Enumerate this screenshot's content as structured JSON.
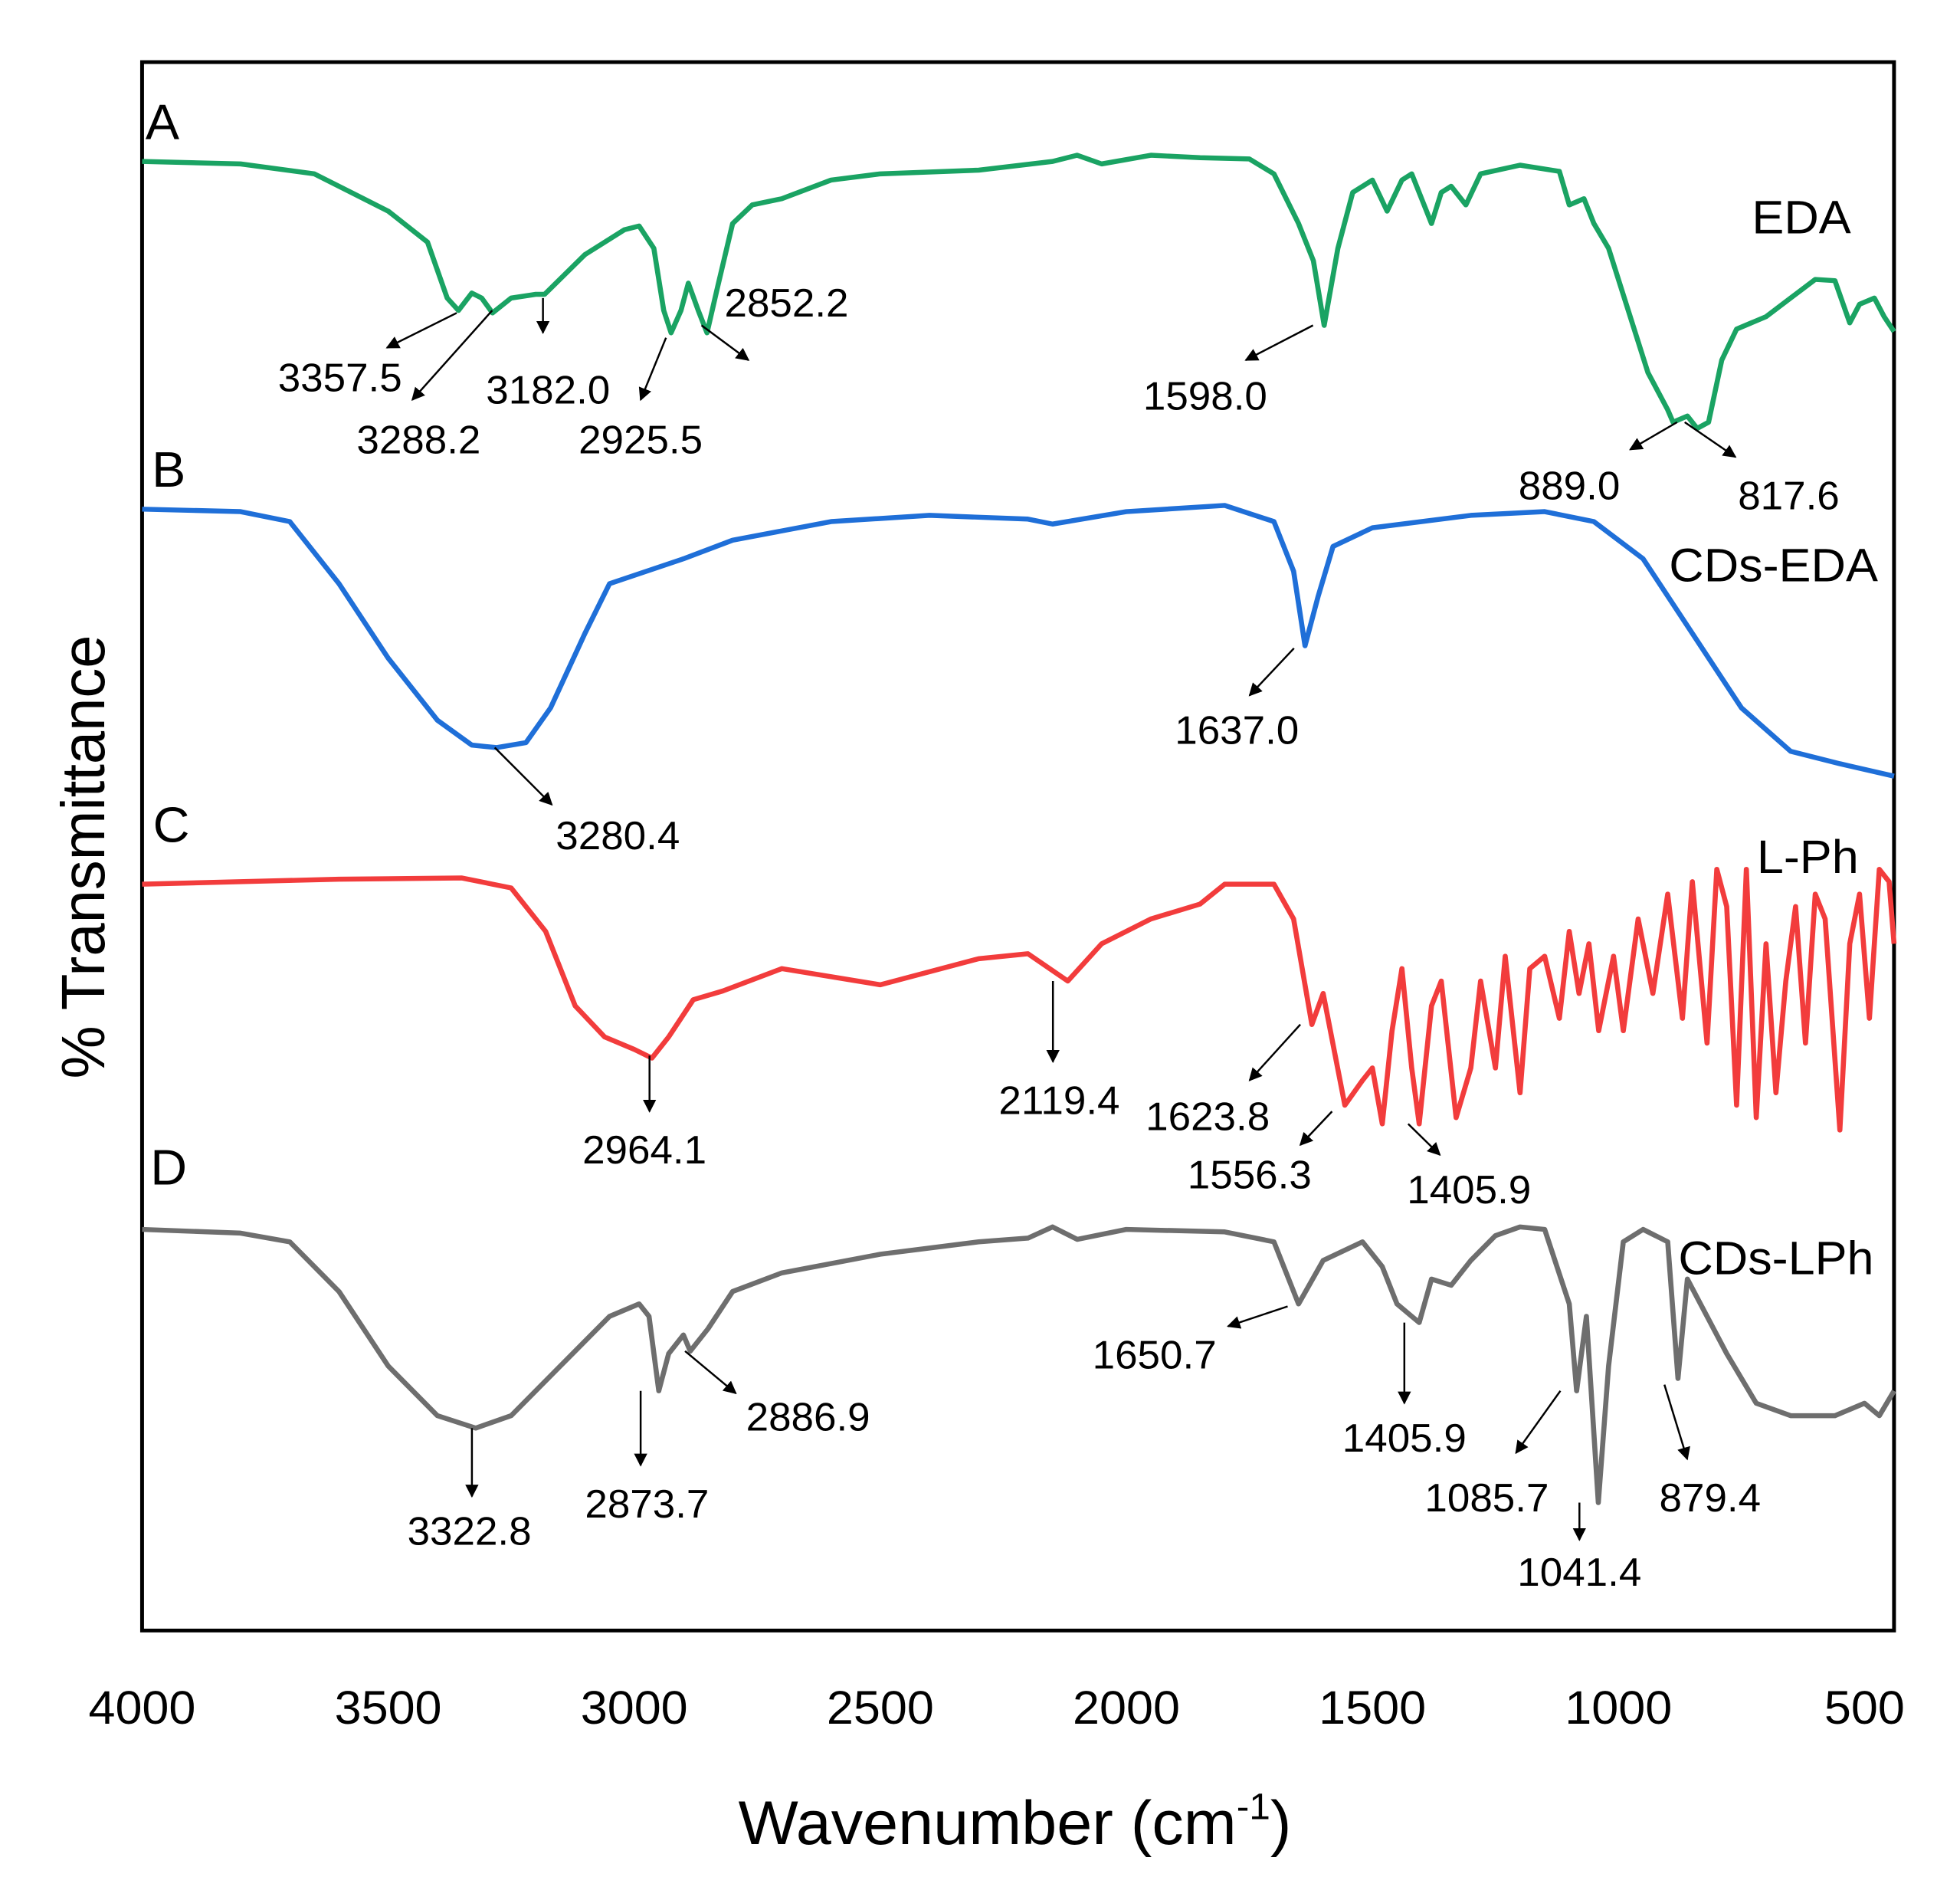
{
  "chart_data": {
    "type": "line",
    "x_label": [
      "Wavenumber (cm",
      "-1",
      ")"
    ],
    "y_label": "% Transmittance",
    "xlim": [
      4000,
      440
    ],
    "ylim": [
      0,
      126.3
    ],
    "xticks": [
      4000,
      3500,
      3000,
      2500,
      2000,
      1500,
      1000,
      500
    ],
    "grid": false,
    "panel_labels": [
      "A",
      "B",
      "C",
      "D"
    ],
    "series": [
      {
        "name": "EDA",
        "color": "#1aa363",
        "x": [
          4000,
          3800,
          3650,
          3500,
          3420,
          3380,
          3357,
          3330,
          3310,
          3288,
          3250,
          3200,
          3182,
          3100,
          3020,
          2990,
          2960,
          2940,
          2925,
          2905,
          2890,
          2870,
          2852,
          2830,
          2800,
          2760,
          2700,
          2600,
          2500,
          2300,
          2150,
          2100,
          2050,
          1950,
          1850,
          1750,
          1700,
          1650,
          1620,
          1598,
          1570,
          1540,
          1500,
          1470,
          1440,
          1420,
          1400,
          1380,
          1360,
          1340,
          1310,
          1280,
          1200,
          1120,
          1100,
          1070,
          1050,
          1020,
          980,
          940,
          900,
          889,
          860,
          840,
          817,
          790,
          760,
          700,
          650,
          600,
          560,
          530,
          510,
          480,
          460,
          440
        ],
        "values": [
          118.3,
          118.1,
          117.3,
          114.3,
          111.8,
          107.3,
          106.3,
          107.7,
          107.3,
          106.1,
          107.3,
          107.6,
          107.6,
          110.8,
          112.8,
          113.1,
          111.3,
          106.3,
          104.5,
          106.3,
          108.5,
          106.3,
          104.5,
          108.3,
          113.3,
          114.8,
          115.3,
          116.8,
          117.3,
          117.6,
          118.3,
          118.8,
          118.1,
          118.8,
          118.6,
          118.5,
          117.3,
          113.3,
          110.3,
          105.1,
          111.3,
          115.8,
          116.8,
          114.3,
          116.8,
          117.3,
          115.3,
          113.3,
          115.8,
          116.3,
          114.8,
          117.3,
          118.0,
          117.5,
          114.8,
          115.3,
          113.3,
          111.3,
          106.3,
          101.3,
          98.3,
          97.3,
          97.8,
          96.8,
          97.3,
          102.3,
          104.8,
          105.8,
          107.3,
          108.8,
          108.7,
          105.3,
          106.8,
          107.3,
          105.8,
          104.6
        ]
      },
      {
        "name": "CDs-EDA",
        "color": "#1f6fd8",
        "x": [
          4000,
          3800,
          3700,
          3600,
          3500,
          3400,
          3330,
          3280,
          3220,
          3170,
          3100,
          3050,
          2900,
          2800,
          2600,
          2400,
          2200,
          2150,
          2000,
          1800,
          1700,
          1660,
          1637,
          1610,
          1580,
          1500,
          1300,
          1150,
          1050,
          950,
          850,
          750,
          650,
          550,
          440
        ],
        "values": [
          90.3,
          90.1,
          89.3,
          84.3,
          78.3,
          73.3,
          71.3,
          71.1,
          71.5,
          74.3,
          80.3,
          84.3,
          86.3,
          87.8,
          89.3,
          89.8,
          89.5,
          89.1,
          90.1,
          90.6,
          89.3,
          85.3,
          79.3,
          83.3,
          87.3,
          88.8,
          89.8,
          90.1,
          89.3,
          86.3,
          80.3,
          74.3,
          70.8,
          69.8,
          68.8
        ]
      },
      {
        "name": "L-Ph",
        "color": "#f23c3c",
        "x": [
          4000,
          3600,
          3350,
          3250,
          3180,
          3120,
          3060,
          3000,
          2964,
          2930,
          2880,
          2820,
          2700,
          2500,
          2300,
          2200,
          2119,
          2050,
          1950,
          1850,
          1800,
          1700,
          1660,
          1623,
          1600,
          1556,
          1520,
          1500,
          1480,
          1460,
          1440,
          1420,
          1405,
          1380,
          1360,
          1330,
          1300,
          1280,
          1250,
          1230,
          1200,
          1180,
          1150,
          1120,
          1100,
          1080,
          1060,
          1040,
          1010,
          990,
          960,
          930,
          900,
          870,
          850,
          820,
          800,
          780,
          760,
          740,
          720,
          700,
          680,
          660,
          640,
          620,
          600,
          580,
          550,
          530,
          510,
          490,
          470,
          450,
          440
        ],
        "values": [
          60.1,
          60.5,
          60.6,
          59.8,
          56.3,
          50.3,
          47.8,
          46.8,
          46.1,
          47.8,
          50.8,
          51.5,
          53.3,
          52.0,
          54.1,
          54.5,
          52.3,
          55.3,
          57.3,
          58.5,
          60.1,
          60.1,
          57.3,
          48.8,
          51.3,
          42.3,
          44.3,
          45.3,
          40.8,
          48.3,
          53.3,
          45.3,
          40.8,
          50.3,
          52.3,
          41.3,
          45.3,
          52.3,
          45.3,
          54.3,
          43.3,
          53.3,
          54.3,
          49.3,
          56.3,
          51.3,
          55.3,
          48.3,
          54.3,
          48.3,
          57.3,
          51.3,
          59.3,
          49.3,
          60.3,
          47.3,
          61.3,
          58.3,
          42.3,
          61.3,
          41.3,
          55.3,
          43.3,
          52.3,
          58.3,
          47.3,
          59.3,
          57.3,
          40.3,
          55.3,
          59.3,
          49.3,
          61.3,
          60.3,
          55.3
        ]
      },
      {
        "name": "CDs-LPh",
        "color": "#6e6e6e",
        "x": [
          4000,
          3800,
          3700,
          3600,
          3500,
          3400,
          3322,
          3250,
          3150,
          3050,
          2990,
          2970,
          2950,
          2930,
          2900,
          2886,
          2850,
          2800,
          2700,
          2500,
          2300,
          2200,
          2150,
          2100,
          2000,
          1800,
          1700,
          1650,
          1600,
          1520,
          1480,
          1450,
          1420,
          1405,
          1380,
          1340,
          1300,
          1250,
          1200,
          1150,
          1100,
          1085,
          1065,
          1041,
          1020,
          990,
          950,
          900,
          879,
          860,
          820,
          780,
          720,
          650,
          560,
          500,
          470,
          440
        ],
        "values": [
          32.3,
          32.0,
          31.3,
          27.3,
          21.3,
          17.3,
          16.3,
          17.3,
          21.3,
          25.3,
          26.3,
          25.3,
          19.3,
          22.3,
          23.8,
          22.5,
          24.3,
          27.3,
          28.8,
          30.3,
          31.3,
          31.6,
          32.5,
          31.5,
          32.3,
          32.1,
          31.3,
          26.3,
          29.8,
          31.3,
          29.3,
          26.3,
          25.3,
          24.8,
          28.3,
          27.8,
          29.8,
          31.8,
          32.5,
          32.3,
          26.3,
          19.3,
          25.3,
          10.3,
          21.3,
          31.3,
          32.3,
          31.3,
          20.3,
          28.3,
          25.3,
          22.3,
          18.3,
          17.3,
          17.3,
          18.3,
          17.3,
          19.3
        ]
      }
    ],
    "annotations": [
      "3357.5",
      "3288.2",
      "3182.0",
      "2925.5",
      "2852.2",
      "1598.0",
      "889.0",
      "817.6",
      "1637.0",
      "3280.4",
      "2964.1",
      "2119.4",
      "1623.8",
      "1556.3",
      "1405.9",
      "1650.7",
      "1405.9",
      "3322.8",
      "2873.7",
      "2886.9",
      "1085.7",
      "1041.4",
      "879.4"
    ]
  }
}
